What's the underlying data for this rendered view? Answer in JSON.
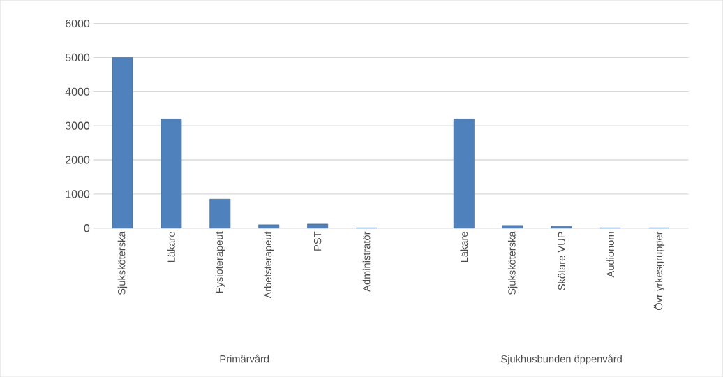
{
  "chart_data": {
    "type": "bar",
    "categories": [
      "Sjuksköterska",
      "Läkare",
      "Fysioterapeut",
      "Arbetsterapeut",
      "PST",
      "Administratör",
      null,
      "Läkare",
      "Sjuksköterska",
      "Skötare VUP",
      "Audionom",
      "Övr yrkesgrupper"
    ],
    "values": [
      5000,
      3200,
      850,
      100,
      120,
      10,
      null,
      3200,
      80,
      50,
      10,
      10
    ],
    "color": "#4f81bd",
    "ylim": [
      0,
      6000
    ],
    "yticks": [
      0,
      1000,
      2000,
      3000,
      4000,
      5000,
      6000
    ],
    "grid": "y",
    "annotations": [
      "Primärvård",
      "Sjukhusbunden öppenvård"
    ]
  }
}
